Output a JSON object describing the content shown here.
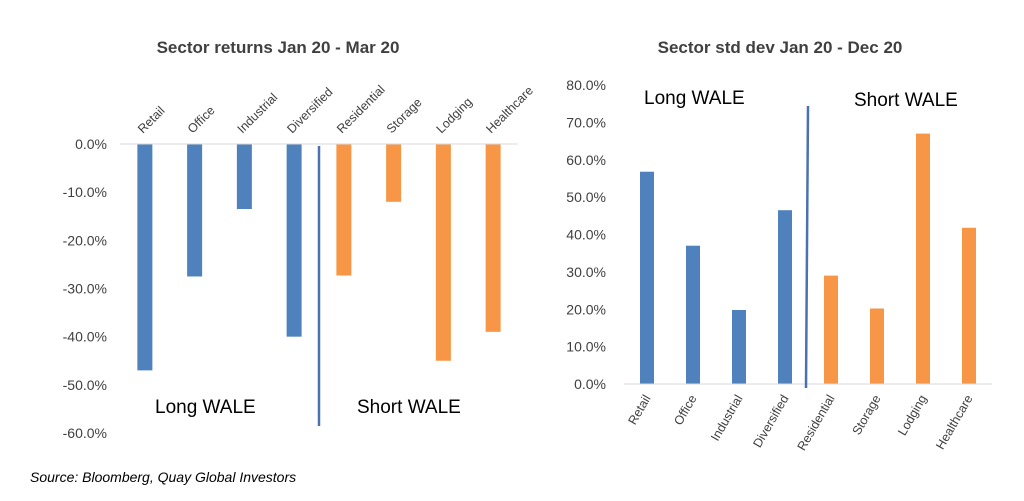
{
  "chart_data": [
    {
      "type": "bar",
      "title": "Sector returns Jan 20 - Mar 20",
      "categories": [
        "Retail",
        "Office",
        "Industrial",
        "Diversified",
        "Residential",
        "Storage",
        "Lodging",
        "Healthcare"
      ],
      "values": [
        -47.0,
        -27.5,
        -13.5,
        -40.0,
        -27.3,
        -12.0,
        -45.0,
        -39.0
      ],
      "ylim": [
        -60,
        0
      ],
      "y_ticks": [
        "0.0%",
        "-10.0%",
        "-20.0%",
        "-30.0%",
        "-40.0%",
        "-50.0%",
        "-60.0%"
      ],
      "category_label_position": "top",
      "groups": [
        {
          "label": "Long WALE",
          "categories": [
            "Retail",
            "Office",
            "Industrial",
            "Diversified"
          ],
          "color": "#4f81bd"
        },
        {
          "label": "Short WALE",
          "categories": [
            "Residential",
            "Storage",
            "Lodging",
            "Healthcare"
          ],
          "color": "#f79646"
        }
      ],
      "grid": false
    },
    {
      "type": "bar",
      "title": "Sector std dev Jan 20 - Dec 20",
      "categories": [
        "Retail",
        "Office",
        "Industrial",
        "Diversified",
        "Residential",
        "Storage",
        "Lodging",
        "Healthcare"
      ],
      "values": [
        56.8,
        37.0,
        19.8,
        46.5,
        29.0,
        20.2,
        67.0,
        41.8
      ],
      "ylim": [
        0,
        80
      ],
      "y_ticks": [
        "0.0%",
        "10.0%",
        "20.0%",
        "30.0%",
        "40.0%",
        "50.0%",
        "60.0%",
        "70.0%",
        "80.0%"
      ],
      "category_label_position": "bottom",
      "groups": [
        {
          "label": "Long WALE",
          "categories": [
            "Retail",
            "Office",
            "Industrial",
            "Diversified"
          ],
          "color": "#4f81bd"
        },
        {
          "label": "Short WALE",
          "categories": [
            "Residential",
            "Storage",
            "Lodging",
            "Healthcare"
          ],
          "color": "#f79646"
        }
      ],
      "grid": false
    }
  ],
  "source": "Source: Bloomberg, Quay Global Investors",
  "colors": {
    "long_wale": "#4f81bd",
    "short_wale": "#f79646",
    "divider": "#4a72b0",
    "axis": "#d9d9d9"
  }
}
